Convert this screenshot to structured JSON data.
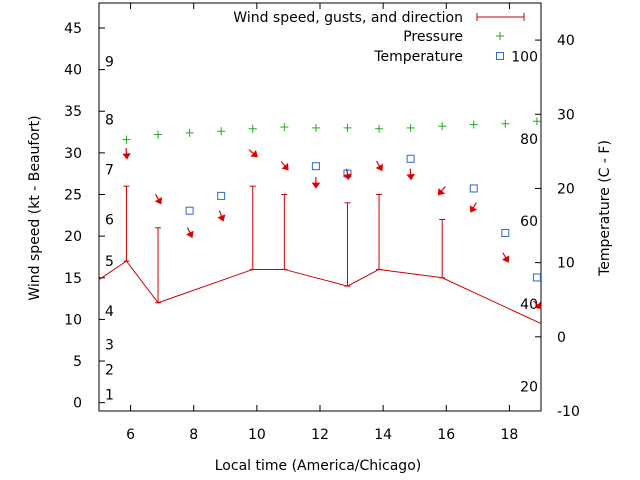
{
  "chart_data": {
    "type": "line",
    "title": "",
    "xlabel": "Local time (America/Chicago)",
    "ylabel_left": "Wind speed (kt - Beaufort)",
    "ylabel_right": "Temperature (C - F)",
    "xlim": [
      5,
      19
    ],
    "ylim_left": [
      -1,
      48
    ],
    "ylim_right": [
      -10,
      45
    ],
    "x_ticks": [
      6,
      8,
      10,
      12,
      14,
      16,
      18
    ],
    "y_left_ticks": [
      0,
      5,
      10,
      15,
      20,
      25,
      30,
      35,
      40,
      45
    ],
    "y_right_ticks": [
      -10,
      0,
      10,
      20,
      30,
      40
    ],
    "beaufort_labels": [
      {
        "label": "1",
        "speed": 1
      },
      {
        "label": "2",
        "speed": 4
      },
      {
        "label": "3",
        "speed": 7
      },
      {
        "label": "4",
        "speed": 11
      },
      {
        "label": "5",
        "speed": 17
      },
      {
        "label": "6",
        "speed": 22
      },
      {
        "label": "7",
        "speed": 28
      },
      {
        "label": "8",
        "speed": 34
      },
      {
        "label": "9",
        "speed": 41
      }
    ],
    "fahrenheit_labels": [
      {
        "label": "20",
        "celsius": -6.7
      },
      {
        "label": "40",
        "celsius": 4.4
      },
      {
        "label": "60",
        "celsius": 15.6
      },
      {
        "label": "80",
        "celsius": 26.7
      },
      {
        "label": "100",
        "celsius": 37.8
      }
    ],
    "legend": {
      "placement": "top-right",
      "entries": [
        "Wind speed, gusts, and direction",
        "Pressure",
        "Temperature"
      ]
    },
    "colors": {
      "wind": "#cc0000",
      "pressure": "#22aa22",
      "temperature": "#3366cc",
      "arrow": "#dd0000"
    },
    "series": [
      {
        "name": "Wind speed",
        "axis": "left",
        "x": [
          4.5,
          5.87,
          6.87,
          9.87,
          10.87,
          12.87,
          13.87,
          15.87,
          19
        ],
        "values": [
          13.5,
          17,
          12,
          16,
          16,
          14,
          16,
          15,
          9.5
        ]
      },
      {
        "name": "Gusts",
        "axis": "left",
        "x": [
          5.87,
          6.87,
          9.87,
          10.87,
          12.87,
          13.87,
          15.87
        ],
        "values": [
          26,
          21,
          26,
          25,
          24,
          25,
          22
        ]
      },
      {
        "name": "Pressure",
        "axis": "left",
        "x": [
          5.87,
          6.87,
          7.87,
          8.87,
          9.87,
          10.87,
          11.87,
          12.87,
          13.87,
          14.87,
          15.87,
          16.87,
          17.87,
          18.87
        ],
        "values": [
          31.6,
          32.2,
          32.4,
          32.6,
          32.9,
          33.1,
          33.0,
          33.0,
          32.9,
          33.0,
          33.2,
          33.4,
          33.5,
          33.8
        ]
      },
      {
        "name": "Temperature",
        "axis": "right",
        "x": [
          7.87,
          8.87,
          11.87,
          12.87,
          14.87,
          16.87,
          17.87,
          18.87
        ],
        "values": [
          17,
          19,
          23,
          22,
          24,
          20,
          14,
          8
        ]
      },
      {
        "name": "Wind direction",
        "axis": "left",
        "x": [
          5.87,
          6.87,
          7.87,
          8.87,
          9.87,
          10.87,
          11.87,
          12.87,
          13.87,
          14.87,
          15.87,
          16.87,
          17.87,
          18.87
        ],
        "values": [
          30,
          24.5,
          20.5,
          22.5,
          30,
          28.5,
          26.5,
          27.5,
          28.5,
          27.5,
          25.5,
          23.5,
          17.5,
          11.8
        ],
        "direction_deg": [
          355,
          330,
          335,
          340,
          310,
          320,
          360,
          350,
          330,
          355,
          40,
          30,
          330,
          315
        ]
      }
    ]
  }
}
